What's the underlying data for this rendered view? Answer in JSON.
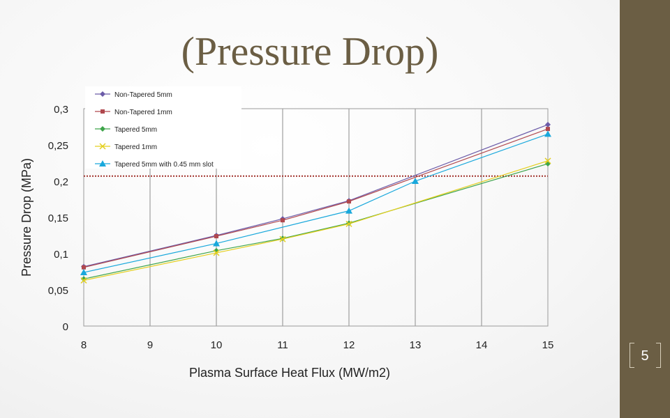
{
  "slide": {
    "title": "(Pressure Drop)",
    "page_number": "5"
  },
  "colors": {
    "side_band": "#6b5e44",
    "title": "#6b5e44",
    "threshold_line": "#a0302a"
  },
  "chart_data": {
    "type": "line",
    "xlabel": "Plasma Surface Heat Flux (MW/m2)",
    "ylabel": "Pressure Drop (MPa)",
    "xlim": [
      8,
      15
    ],
    "ylim": [
      0,
      0.3
    ],
    "xticks": [
      "8",
      "9",
      "10",
      "11",
      "12",
      "13",
      "14",
      "15"
    ],
    "yticks": [
      "0",
      "0,05",
      "0,1",
      "0,15",
      "0,2",
      "0,25",
      "0,3"
    ],
    "grid": "vertical",
    "legend_position": "top-left",
    "threshold": {
      "y": 0.207,
      "style": "dotted",
      "color": "#a0302a"
    },
    "series": [
      {
        "name": "Non-Tapered 5mm",
        "color": "#6b5ba8",
        "marker": "diamond",
        "x": [
          8,
          10,
          11,
          12,
          15
        ],
        "y": [
          0.082,
          0.125,
          0.148,
          0.173,
          0.278
        ]
      },
      {
        "name": "Non-Tapered 1mm",
        "color": "#b0484e",
        "marker": "square",
        "x": [
          8,
          10,
          11,
          12,
          15
        ],
        "y": [
          0.081,
          0.124,
          0.146,
          0.172,
          0.272
        ]
      },
      {
        "name": "Tapered 5mm",
        "color": "#3ea44a",
        "marker": "diamond",
        "x": [
          8,
          10,
          11,
          12,
          15
        ],
        "y": [
          0.065,
          0.104,
          0.121,
          0.142,
          0.224
        ]
      },
      {
        "name": "Tapered 1mm",
        "color": "#e4cf1e",
        "marker": "x",
        "x": [
          8,
          10,
          11,
          12,
          15
        ],
        "y": [
          0.063,
          0.101,
          0.12,
          0.141,
          0.228
        ]
      },
      {
        "name": "Tapered 5mm with 0.45 mm slot",
        "color": "#19a8dc",
        "marker": "triangle",
        "x": [
          8,
          10,
          12,
          13,
          15
        ],
        "y": [
          0.074,
          0.114,
          0.159,
          0.2,
          0.265
        ]
      }
    ]
  }
}
